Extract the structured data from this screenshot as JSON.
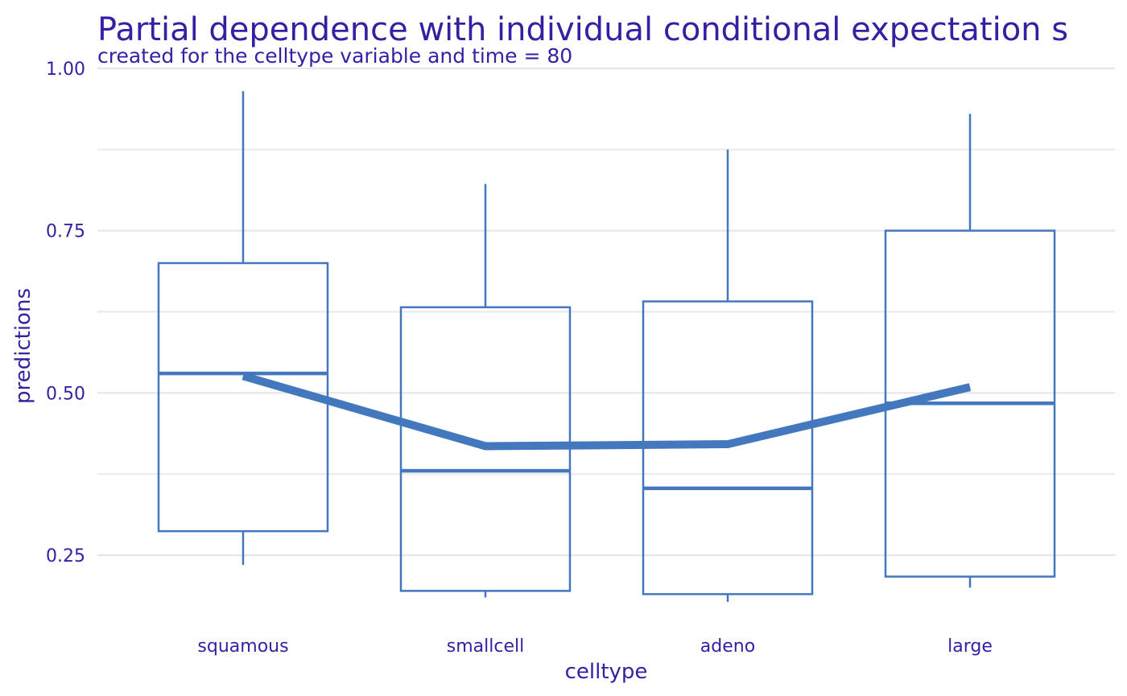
{
  "chart_data": {
    "type": "box",
    "title": "Partial dependence with individual conditional expectation s",
    "subtitle": "created for the celltype variable and time = 80",
    "xlabel": "celltype",
    "ylabel": "predictions",
    "categories": [
      "squamous",
      "smallcell",
      "adeno",
      "large"
    ],
    "ylim": [
      0.16,
      1.0
    ],
    "yticks": [
      0.25,
      0.5,
      0.75,
      1.0
    ],
    "ytick_labels": [
      "0.25",
      "0.50",
      "0.75",
      "1.00"
    ],
    "grid": true,
    "boxes": [
      {
        "category": "squamous",
        "min": 0.235,
        "q1": 0.287,
        "median": 0.53,
        "q3": 0.7,
        "max": 0.965
      },
      {
        "category": "smallcell",
        "min": 0.185,
        "q1": 0.195,
        "median": 0.38,
        "q3": 0.632,
        "max": 0.822
      },
      {
        "category": "adeno",
        "min": 0.178,
        "q1": 0.19,
        "median": 0.353,
        "q3": 0.641,
        "max": 0.875
      },
      {
        "category": "large",
        "min": 0.2,
        "q1": 0.217,
        "median": 0.484,
        "q3": 0.75,
        "max": 0.93
      }
    ],
    "partial_dependence": [
      0.526,
      0.418,
      0.421,
      0.509
    ],
    "colors": {
      "box": "#4378bf",
      "text": "#371ea3",
      "grid": "#e6e6e6"
    }
  }
}
